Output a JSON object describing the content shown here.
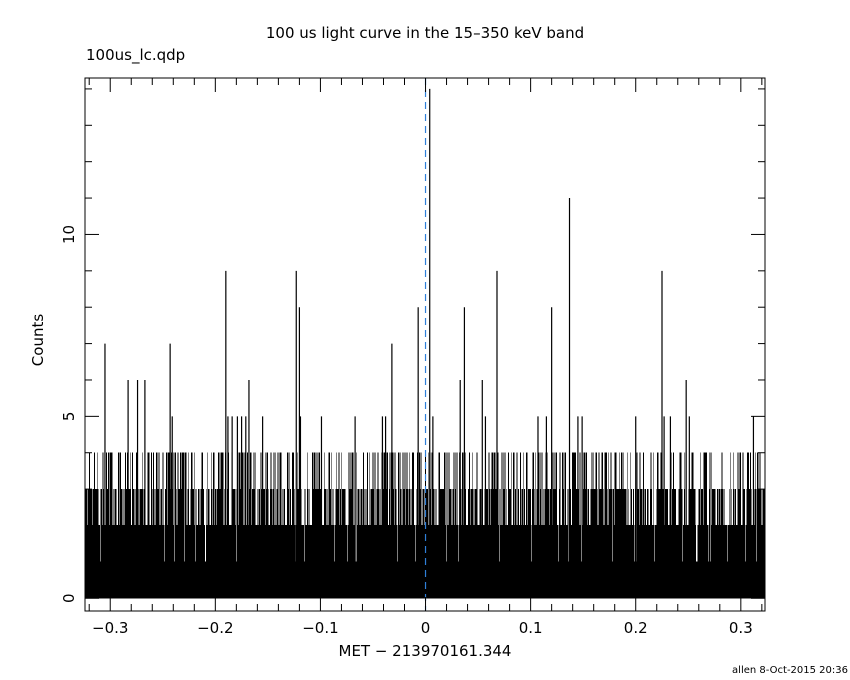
{
  "chart_data": {
    "type": "line",
    "subtype": "histogram-step",
    "title": "100 us light curve in the 15–350 keV band",
    "file_label": "100us_lc.qdp",
    "xlabel": "MET − 213970161.344",
    "ylabel": "Counts",
    "xlim": [
      -0.324,
      0.323
    ],
    "ylim": [
      -0.35,
      14.3
    ],
    "bin_width": 0.0001,
    "x_ticks": [
      -0.3,
      -0.2,
      -0.1,
      0,
      0.1,
      0.2,
      0.3
    ],
    "x_tick_labels": [
      "−0.3",
      "−0.2",
      "−0.1",
      "0",
      "0.1",
      "0.2",
      "0.3"
    ],
    "y_ticks": [
      0,
      5,
      10
    ],
    "y_tick_labels": [
      "0",
      "5",
      "10"
    ],
    "trigger_marker_x": 0,
    "background_mean_counts": 1.4,
    "gaps": [
      -0.252,
      0.258
    ],
    "peaks": [
      {
        "x": -0.305,
        "y": 7
      },
      {
        "x": -0.283,
        "y": 6
      },
      {
        "x": -0.274,
        "y": 6
      },
      {
        "x": -0.267,
        "y": 6
      },
      {
        "x": -0.243,
        "y": 7
      },
      {
        "x": -0.241,
        "y": 5
      },
      {
        "x": -0.19,
        "y": 9
      },
      {
        "x": -0.188,
        "y": 5
      },
      {
        "x": -0.184,
        "y": 5
      },
      {
        "x": -0.179,
        "y": 5
      },
      {
        "x": -0.175,
        "y": 5
      },
      {
        "x": -0.171,
        "y": 5
      },
      {
        "x": -0.168,
        "y": 6
      },
      {
        "x": -0.155,
        "y": 5
      },
      {
        "x": -0.123,
        "y": 9
      },
      {
        "x": -0.12,
        "y": 8
      },
      {
        "x": -0.119,
        "y": 5
      },
      {
        "x": -0.099,
        "y": 5
      },
      {
        "x": -0.067,
        "y": 5
      },
      {
        "x": -0.041,
        "y": 5
      },
      {
        "x": -0.038,
        "y": 5
      },
      {
        "x": -0.032,
        "y": 7
      },
      {
        "x": -0.007,
        "y": 8
      },
      {
        "x": 0.004,
        "y": 14
      },
      {
        "x": 0.007,
        "y": 5
      },
      {
        "x": 0.033,
        "y": 6
      },
      {
        "x": 0.037,
        "y": 8
      },
      {
        "x": 0.054,
        "y": 6
      },
      {
        "x": 0.057,
        "y": 5
      },
      {
        "x": 0.068,
        "y": 9
      },
      {
        "x": 0.107,
        "y": 5
      },
      {
        "x": 0.115,
        "y": 5
      },
      {
        "x": 0.12,
        "y": 8
      },
      {
        "x": 0.137,
        "y": 11
      },
      {
        "x": 0.145,
        "y": 5
      },
      {
        "x": 0.149,
        "y": 5
      },
      {
        "x": 0.2,
        "y": 5
      },
      {
        "x": 0.225,
        "y": 9
      },
      {
        "x": 0.227,
        "y": 5
      },
      {
        "x": 0.233,
        "y": 5
      },
      {
        "x": 0.248,
        "y": 6
      },
      {
        "x": 0.251,
        "y": 5
      },
      {
        "x": 0.312,
        "y": 5
      }
    ]
  },
  "footer": "allen  8-Oct-2015 20:36",
  "colors": {
    "line": "#000000",
    "marker": "#2f7fd8",
    "background": "#ffffff"
  }
}
